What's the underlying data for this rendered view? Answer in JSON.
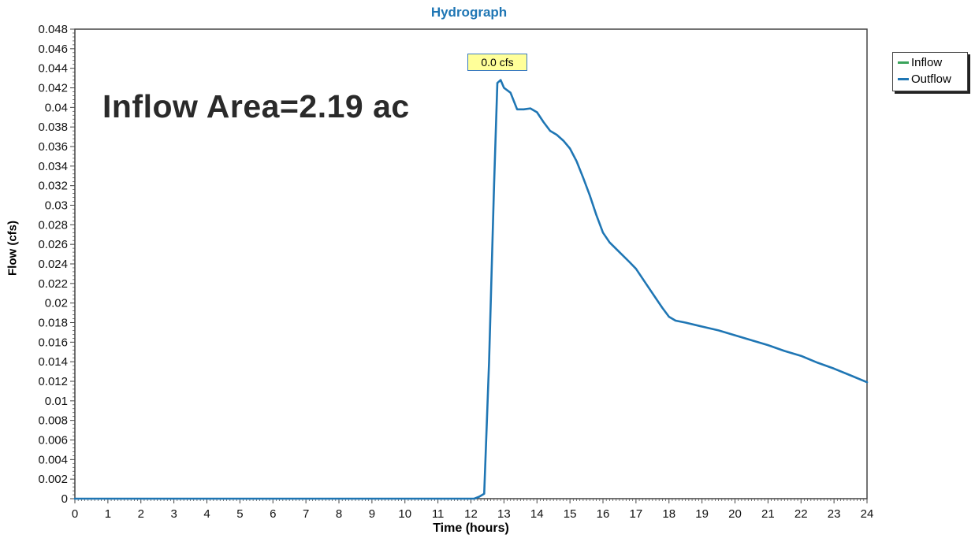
{
  "chart_data": {
    "type": "line",
    "title": "Hydrograph",
    "xlabel": "Time (hours)",
    "ylabel": "Flow (cfs)",
    "xlim": [
      0,
      24
    ],
    "ylim": [
      0,
      0.048
    ],
    "x_ticks": [
      "0",
      "1",
      "2",
      "3",
      "4",
      "5",
      "6",
      "7",
      "8",
      "9",
      "10",
      "11",
      "12",
      "13",
      "14",
      "15",
      "16",
      "17",
      "18",
      "19",
      "20",
      "21",
      "22",
      "23",
      "24"
    ],
    "y_ticks": [
      "0",
      "0.002",
      "0.004",
      "0.006",
      "0.008",
      "0.01",
      "0.012",
      "0.014",
      "0.016",
      "0.018",
      "0.02",
      "0.022",
      "0.024",
      "0.026",
      "0.028",
      "0.03",
      "0.032",
      "0.034",
      "0.036",
      "0.038",
      "0.04",
      "0.042",
      "0.044",
      "0.046",
      "0.048"
    ],
    "grid": false,
    "legend_position": "outside-top-right",
    "annotation": "Inflow Area=2.19 ac",
    "peak_label": "0.0 cfs",
    "series": [
      {
        "name": "Inflow",
        "color": "#3aa35b",
        "x": [],
        "y": []
      },
      {
        "name": "Outflow",
        "color": "#1f76b4",
        "x": [
          0,
          12.1,
          12.25,
          12.4,
          12.55,
          12.7,
          12.8,
          12.9,
          13.0,
          13.2,
          13.4,
          13.6,
          13.8,
          14.0,
          14.2,
          14.4,
          14.6,
          14.8,
          15.0,
          15.2,
          15.4,
          15.6,
          15.8,
          16.0,
          16.2,
          16.5,
          16.8,
          17.0,
          17.3,
          17.6,
          17.8,
          18.0,
          18.2,
          18.5,
          19.0,
          19.5,
          20.0,
          20.5,
          21.0,
          21.5,
          22.0,
          22.5,
          23.0,
          23.5,
          24.0
        ],
        "y": [
          0,
          0,
          0.0002,
          0.0005,
          0.014,
          0.032,
          0.0425,
          0.0428,
          0.042,
          0.0415,
          0.0398,
          0.0398,
          0.0399,
          0.0395,
          0.0385,
          0.0376,
          0.0372,
          0.0366,
          0.0358,
          0.0345,
          0.0328,
          0.031,
          0.029,
          0.0272,
          0.0262,
          0.0252,
          0.0242,
          0.0235,
          0.022,
          0.0205,
          0.0195,
          0.0186,
          0.0182,
          0.018,
          0.0176,
          0.0172,
          0.0167,
          0.0162,
          0.0157,
          0.0151,
          0.0146,
          0.0139,
          0.0133,
          0.0126,
          0.0119
        ]
      }
    ]
  },
  "colors": {
    "title": "#1f76b4",
    "axis": "#444444",
    "peak_label_bg": "#ffff99",
    "peak_label_border": "#3b7bbf"
  }
}
